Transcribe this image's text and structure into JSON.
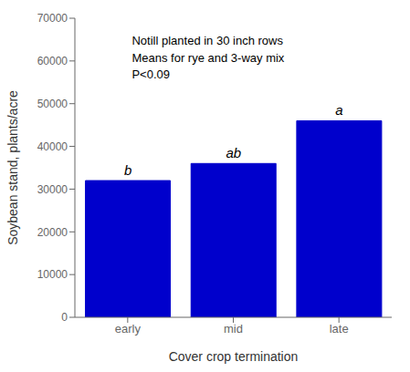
{
  "chart_data": {
    "type": "bar",
    "categories": [
      "early",
      "mid",
      "late"
    ],
    "values": [
      32000,
      36000,
      46000
    ],
    "color": "#0000CC",
    "bar_labels": [
      "b",
      "ab",
      "a"
    ],
    "xlabel": "Cover crop termination",
    "ylabel": "Soybean stand, plants/acre",
    "ylim": [
      0,
      70000
    ],
    "yticks": [
      0,
      10000,
      20000,
      30000,
      40000,
      50000,
      60000,
      70000
    ],
    "annotation": "Notill planted in 30 inch rows\nMeans for rye and 3-way mix\nP<0.09",
    "grid": false
  }
}
